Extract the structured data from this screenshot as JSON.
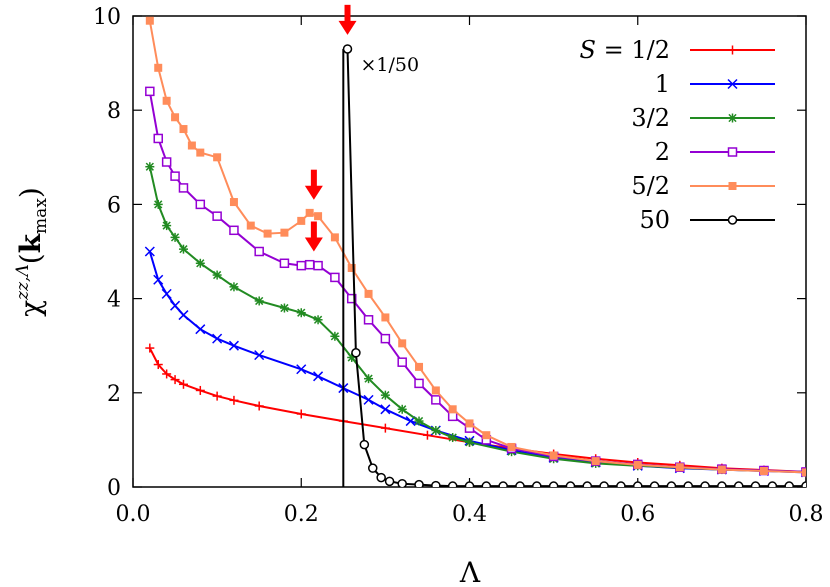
{
  "chart_data": {
    "type": "line",
    "title": "",
    "xlabel": "Λ",
    "ylabel": "χ^{zz,Λ}(k_max)",
    "ylabel_parts": {
      "chi": "χ",
      "sup": "zz,Λ",
      "open": "(",
      "k": "k",
      "sub": "max",
      "close": ")"
    },
    "xlim": [
      0.0,
      0.8
    ],
    "ylim": [
      0,
      10
    ],
    "xticks": [
      0.0,
      0.2,
      0.4,
      0.6,
      0.8
    ],
    "xtick_labels": [
      "0.0",
      "0.2",
      "0.4",
      "0.6",
      "0.8"
    ],
    "yticks": [
      0,
      2,
      4,
      6,
      8,
      10
    ],
    "ytick_labels": [
      "0",
      "2",
      "4",
      "6",
      "8",
      "10"
    ],
    "grid": false,
    "legend_position": "top-right",
    "legend_title_prefix": "S = ",
    "annotation": {
      "text": "×1/50",
      "x": 0.255,
      "y": 9.3
    },
    "arrows": [
      {
        "x": 0.255,
        "y": 9.6,
        "color": "#ff0000"
      },
      {
        "x": 0.215,
        "y": 6.1,
        "color": "#ff0000"
      },
      {
        "x": 0.215,
        "y": 5.0,
        "color": "#ff0000"
      }
    ],
    "series": [
      {
        "name": "1/2",
        "color": "#ff0000",
        "marker": "plus",
        "x": [
          0.02,
          0.03,
          0.04,
          0.05,
          0.06,
          0.08,
          0.1,
          0.12,
          0.15,
          0.2,
          0.25,
          0.3,
          0.35,
          0.4,
          0.45,
          0.5,
          0.55,
          0.6,
          0.65,
          0.7,
          0.75,
          0.8
        ],
        "y": [
          2.95,
          2.6,
          2.4,
          2.28,
          2.18,
          2.05,
          1.93,
          1.84,
          1.72,
          1.55,
          1.4,
          1.25,
          1.1,
          0.95,
          0.82,
          0.7,
          0.6,
          0.52,
          0.46,
          0.4,
          0.36,
          0.32
        ]
      },
      {
        "name": "1",
        "color": "#0000ff",
        "marker": "cross",
        "x": [
          0.02,
          0.03,
          0.04,
          0.05,
          0.06,
          0.08,
          0.1,
          0.12,
          0.15,
          0.2,
          0.22,
          0.25,
          0.28,
          0.3,
          0.33,
          0.36,
          0.4,
          0.45,
          0.5,
          0.55,
          0.6,
          0.65,
          0.7,
          0.75,
          0.8
        ],
        "y": [
          5.0,
          4.4,
          4.1,
          3.85,
          3.65,
          3.35,
          3.15,
          3.0,
          2.8,
          2.5,
          2.35,
          2.1,
          1.85,
          1.65,
          1.4,
          1.2,
          0.98,
          0.78,
          0.62,
          0.52,
          0.45,
          0.4,
          0.37,
          0.34,
          0.31
        ]
      },
      {
        "name": "3/2",
        "color": "#228b22",
        "marker": "star",
        "x": [
          0.02,
          0.03,
          0.04,
          0.05,
          0.06,
          0.08,
          0.1,
          0.12,
          0.15,
          0.18,
          0.2,
          0.22,
          0.24,
          0.26,
          0.28,
          0.3,
          0.32,
          0.34,
          0.36,
          0.38,
          0.4,
          0.45,
          0.5,
          0.55,
          0.6,
          0.7,
          0.8
        ],
        "y": [
          6.8,
          6.0,
          5.55,
          5.3,
          5.05,
          4.75,
          4.5,
          4.25,
          3.95,
          3.8,
          3.7,
          3.55,
          3.2,
          2.75,
          2.3,
          1.95,
          1.65,
          1.4,
          1.2,
          1.05,
          0.95,
          0.75,
          0.6,
          0.5,
          0.45,
          0.37,
          0.32
        ]
      },
      {
        "name": "2",
        "color": "#9400d3",
        "marker": "open-square",
        "x": [
          0.02,
          0.03,
          0.04,
          0.05,
          0.06,
          0.08,
          0.1,
          0.12,
          0.15,
          0.18,
          0.2,
          0.21,
          0.22,
          0.24,
          0.26,
          0.28,
          0.3,
          0.32,
          0.34,
          0.36,
          0.38,
          0.4,
          0.42,
          0.45,
          0.5,
          0.55,
          0.6,
          0.65,
          0.7,
          0.75,
          0.8
        ],
        "y": [
          8.4,
          7.4,
          6.9,
          6.6,
          6.35,
          6.0,
          5.75,
          5.45,
          5.0,
          4.75,
          4.7,
          4.72,
          4.7,
          4.45,
          4.0,
          3.55,
          3.15,
          2.65,
          2.2,
          1.85,
          1.5,
          1.25,
          1.0,
          0.82,
          0.65,
          0.55,
          0.48,
          0.42,
          0.38,
          0.35,
          0.32
        ]
      },
      {
        "name": "5/2",
        "color": "#ff8c5a",
        "marker": "filled-square",
        "x": [
          0.02,
          0.03,
          0.04,
          0.05,
          0.06,
          0.07,
          0.08,
          0.1,
          0.12,
          0.14,
          0.16,
          0.18,
          0.2,
          0.21,
          0.22,
          0.24,
          0.26,
          0.28,
          0.3,
          0.32,
          0.34,
          0.36,
          0.38,
          0.4,
          0.42,
          0.45,
          0.5,
          0.55,
          0.6,
          0.65,
          0.7,
          0.75,
          0.8
        ],
        "y": [
          9.9,
          8.9,
          8.2,
          7.85,
          7.6,
          7.25,
          7.1,
          7.0,
          6.05,
          5.55,
          5.38,
          5.4,
          5.65,
          5.82,
          5.75,
          5.3,
          4.65,
          4.1,
          3.6,
          3.05,
          2.55,
          2.05,
          1.65,
          1.35,
          1.1,
          0.85,
          0.67,
          0.55,
          0.47,
          0.42,
          0.37,
          0.34,
          0.31
        ]
      },
      {
        "name": "50",
        "color": "#000000",
        "marker": "open-circle",
        "vertical_line_x": 0.25,
        "x": [
          0.255,
          0.265,
          0.275,
          0.285,
          0.295,
          0.305,
          0.32,
          0.34,
          0.36,
          0.38,
          0.4,
          0.42,
          0.44,
          0.46,
          0.48,
          0.5,
          0.52,
          0.54,
          0.56,
          0.58,
          0.6,
          0.62,
          0.64,
          0.66,
          0.68,
          0.7,
          0.72,
          0.74,
          0.76,
          0.78,
          0.8
        ],
        "y": [
          9.3,
          2.85,
          0.9,
          0.4,
          0.2,
          0.12,
          0.07,
          0.05,
          0.03,
          0.02,
          0.02,
          0.02,
          0.02,
          0.02,
          0.02,
          0.02,
          0.02,
          0.02,
          0.02,
          0.02,
          0.02,
          0.02,
          0.02,
          0.02,
          0.02,
          0.02,
          0.02,
          0.02,
          0.02,
          0.02,
          0.02
        ]
      }
    ]
  }
}
